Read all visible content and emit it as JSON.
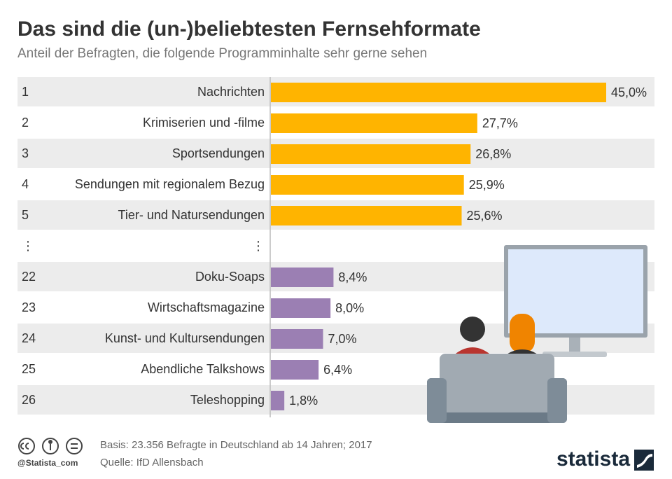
{
  "chart_data": {
    "type": "bar",
    "title": "Das sind die (un-)beliebtesten Fernsehformate",
    "subtitle": "Anteil der Befragten, die folgende Programminhalte sehr gerne sehen",
    "ranks": [
      1,
      2,
      3,
      4,
      5,
      "⋮",
      22,
      23,
      24,
      25,
      26
    ],
    "categories": [
      "Nachrichten",
      "Krimiserien und -filme",
      "Sportsendungen",
      "Sendungen mit regionalem Bezug",
      "Tier- und Natursendungen",
      "⋮",
      "Doku-Soaps",
      "Wirtschaftsmagazine",
      "Kunst- und Kultursendungen",
      "Abendliche Talkshows",
      "Teleshopping"
    ],
    "values": [
      45.0,
      27.7,
      26.8,
      25.9,
      25.6,
      null,
      8.4,
      8.0,
      7.0,
      6.4,
      1.8
    ],
    "value_labels": [
      "45,0%",
      "27,7%",
      "26,8%",
      "25,9%",
      "25,6%",
      null,
      "8,4%",
      "8,0%",
      "7,0%",
      "6,4%",
      "1,8%"
    ],
    "bar_colors": [
      "#ffb400",
      "#ffb400",
      "#ffb400",
      "#ffb400",
      "#ffb400",
      null,
      "#9b7fb3",
      "#9b7fb3",
      "#9b7fb3",
      "#9b7fb3",
      "#9b7fb3"
    ],
    "source": "Basis: 23.356 Befragte in Deutschland ab 14 Jahren; 2017",
    "source2": "Quelle: IfD Allensbach",
    "handle": "@Statista_com",
    "brand": "statista"
  }
}
